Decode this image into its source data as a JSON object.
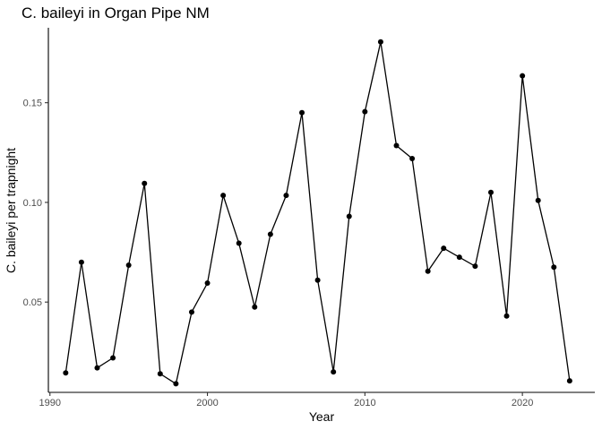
{
  "chart_data": {
    "type": "line",
    "title": "C. baileyi in Organ Pipe NM",
    "xlabel": "Year",
    "ylabel": "C. baileyi per trapnight",
    "xlim": [
      1989.9,
      2024.6
    ],
    "ylim": [
      0.0047,
      0.1876
    ],
    "xticks": [
      1990,
      2000,
      2010,
      2020
    ],
    "xtick_labels": [
      "1990",
      "2000",
      "2010",
      "2020"
    ],
    "yticks": [
      0.05,
      0.1,
      0.15
    ],
    "ytick_labels": [
      "0.05",
      "0.10",
      "0.15"
    ],
    "grid": false,
    "legend": "none",
    "series": [
      {
        "color": "#000000",
        "x": [
          1991,
          1992,
          1993,
          1994,
          1995,
          1996,
          1997,
          1998,
          1999,
          2000,
          2001,
          2002,
          2003,
          2004,
          2005,
          2006,
          2007,
          2008,
          2009,
          2010,
          2011,
          2012,
          2013,
          2014,
          2015,
          2016,
          2017,
          2018,
          2019,
          2020,
          2021,
          2022,
          2023
        ],
        "values": [
          0.0145,
          0.07,
          0.017,
          0.022,
          0.0685,
          0.1095,
          0.014,
          0.009,
          0.045,
          0.0595,
          0.1035,
          0.0795,
          0.0475,
          0.084,
          0.1035,
          0.145,
          0.061,
          0.015,
          0.093,
          0.1455,
          0.1805,
          0.1285,
          0.122,
          0.0655,
          0.077,
          0.0725,
          0.068,
          0.105,
          0.043,
          0.1635,
          0.101,
          0.0675,
          0.0105
        ]
      }
    ]
  }
}
